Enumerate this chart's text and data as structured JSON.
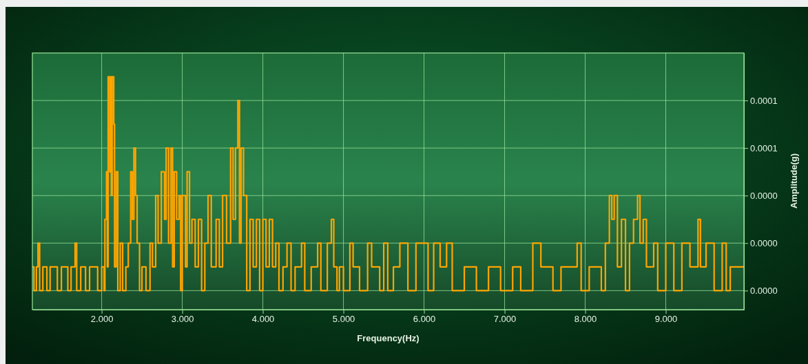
{
  "chart_data": {
    "type": "step",
    "xlabel": "Frequency(Hz)",
    "ylabel": "Amplitude(g)",
    "grid": true,
    "line_style": "solid",
    "marker": "none",
    "xlim": [
      1.14,
      9.97
    ],
    "xticks": [
      {
        "value": 2,
        "label": "2.000"
      },
      {
        "value": 3,
        "label": "3.000"
      },
      {
        "value": 4,
        "label": "4.000"
      },
      {
        "value": 5,
        "label": "5.000"
      },
      {
        "value": 6,
        "label": "6.000"
      },
      {
        "value": 7,
        "label": "7.000"
      },
      {
        "value": 8,
        "label": "8.000"
      },
      {
        "value": 9,
        "label": "9.000"
      }
    ],
    "ylim": [
      -8e-06,
      0.0001
    ],
    "yticks": [
      {
        "value": 0,
        "label": "0.0000"
      },
      {
        "value": 2e-05,
        "label": "0.0000"
      },
      {
        "value": 4e-05,
        "label": "0.0000"
      },
      {
        "value": 6e-05,
        "label": "0.0001"
      },
      {
        "value": 8e-05,
        "label": "0.0001"
      }
    ],
    "series": [
      {
        "color": "#ffa500",
        "x": [
          1.14,
          1.16,
          1.19,
          1.21,
          1.23,
          1.27,
          1.32,
          1.36,
          1.45,
          1.5,
          1.58,
          1.62,
          1.67,
          1.69,
          1.74,
          1.8,
          1.85,
          1.95,
          2.0,
          2.03,
          2.04,
          2.06,
          2.07,
          2.08,
          2.1,
          2.11,
          2.12,
          2.13,
          2.15,
          2.16,
          2.18,
          2.2,
          2.23,
          2.26,
          2.3,
          2.33,
          2.36,
          2.38,
          2.4,
          2.42,
          2.44,
          2.47,
          2.5,
          2.55,
          2.6,
          2.63,
          2.67,
          2.7,
          2.74,
          2.78,
          2.8,
          2.83,
          2.86,
          2.88,
          2.9,
          2.93,
          2.96,
          2.98,
          3.0,
          3.04,
          3.06,
          3.09,
          3.12,
          3.16,
          3.2,
          3.24,
          3.28,
          3.32,
          3.36,
          3.42,
          3.46,
          3.5,
          3.55,
          3.6,
          3.63,
          3.66,
          3.69,
          3.71,
          3.73,
          3.76,
          3.8,
          3.84,
          3.88,
          3.92,
          3.96,
          4.0,
          4.04,
          4.08,
          4.12,
          4.16,
          4.2,
          4.25,
          4.3,
          4.35,
          4.4,
          4.48,
          4.52,
          4.6,
          4.68,
          4.72,
          4.8,
          4.85,
          4.88,
          4.92,
          4.95,
          5.0,
          5.08,
          5.12,
          5.2,
          5.3,
          5.35,
          5.45,
          5.5,
          5.55,
          5.62,
          5.7,
          5.8,
          5.9,
          6.05,
          6.12,
          6.2,
          6.28,
          6.35,
          6.5,
          6.65,
          6.8,
          6.95,
          7.1,
          7.2,
          7.35,
          7.45,
          7.6,
          7.7,
          7.9,
          7.95,
          8.05,
          8.2,
          8.25,
          8.3,
          8.33,
          8.36,
          8.4,
          8.45,
          8.5,
          8.55,
          8.6,
          8.65,
          8.68,
          8.72,
          8.76,
          8.85,
          8.9,
          9.0,
          9.1,
          9.2,
          9.3,
          9.4,
          9.43,
          9.5,
          9.6,
          9.7,
          9.75,
          9.8,
          9.97
        ],
        "values": [
          1e-05,
          0,
          1e-05,
          2e-05,
          0,
          1e-05,
          0,
          1e-05,
          0,
          1e-05,
          0,
          1e-05,
          2e-05,
          0,
          1e-05,
          0,
          1e-05,
          0,
          1e-05,
          0,
          3e-05,
          5e-05,
          1e-05,
          9e-05,
          5e-05,
          9e-05,
          4e-05,
          9e-05,
          7e-05,
          1e-05,
          5e-05,
          0,
          2e-05,
          0,
          1e-05,
          2e-05,
          5e-05,
          3e-05,
          6e-05,
          4e-05,
          2e-05,
          0,
          1e-05,
          0,
          2e-05,
          1e-05,
          4e-05,
          2e-05,
          5e-05,
          3e-05,
          6e-05,
          2e-05,
          6e-05,
          1e-05,
          5e-05,
          3e-05,
          4e-05,
          0,
          4e-05,
          1e-05,
          5e-05,
          2e-05,
          3e-05,
          1e-05,
          3e-05,
          0,
          2e-05,
          4e-05,
          1e-05,
          3e-05,
          1e-05,
          4e-05,
          2e-05,
          6e-05,
          3e-05,
          6e-05,
          8e-05,
          2e-05,
          6e-05,
          4e-05,
          0,
          3e-05,
          1e-05,
          3e-05,
          0,
          3e-05,
          1e-05,
          3e-05,
          1e-05,
          2e-05,
          0,
          1e-05,
          2e-05,
          0,
          1e-05,
          2e-05,
          0,
          1e-05,
          2e-05,
          0,
          2e-05,
          3e-05,
          1e-05,
          0,
          1e-05,
          0,
          2e-05,
          1e-05,
          0,
          2e-05,
          1e-05,
          0,
          2e-05,
          0,
          1e-05,
          2e-05,
          0,
          2e-05,
          0,
          2e-05,
          1e-05,
          2e-05,
          0,
          1e-05,
          0,
          1e-05,
          0,
          1e-05,
          0,
          2e-05,
          1e-05,
          0,
          1e-05,
          2e-05,
          0,
          1e-05,
          0,
          2e-05,
          4e-05,
          3e-05,
          4e-05,
          1e-05,
          3e-05,
          0,
          2e-05,
          3e-05,
          4e-05,
          2e-05,
          3e-05,
          1e-05,
          2e-05,
          0,
          2e-05,
          0,
          2e-05,
          1e-05,
          3e-05,
          1e-05,
          2e-05,
          0,
          2e-05,
          0,
          1e-05,
          1e-05
        ]
      }
    ]
  }
}
